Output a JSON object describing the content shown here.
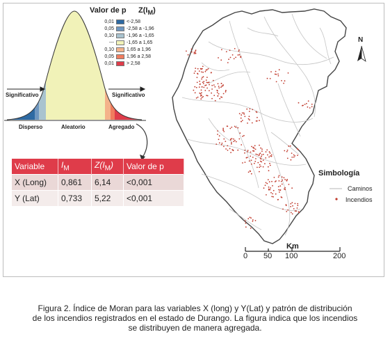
{
  "legend": {
    "header_p": "Valor de p",
    "header_z": "Z(I",
    "header_z_sub": "M",
    "header_z_close": ")",
    "rows": [
      {
        "p": "0,01",
        "z": "<-2,58",
        "color": "#2e6aa3"
      },
      {
        "p": "0,05",
        "z": "-2,58 a -1,96",
        "color": "#6f97c0"
      },
      {
        "p": "0,10",
        "z": "-1,96 a -1,65",
        "color": "#a9c3cf"
      },
      {
        "p": "---",
        "z": "-1,65 a 1,65",
        "color": "#f1f2b8"
      },
      {
        "p": "0,10",
        "z": "1,65 a 1,96",
        "color": "#f4b28a"
      },
      {
        "p": "0,05",
        "z": "1,96 a 2,58",
        "color": "#f07c5e"
      },
      {
        "p": "0,01",
        "z": "> 2,58",
        "color": "#df3c4a"
      }
    ]
  },
  "curve_labels": {
    "significant_left": "Significativo",
    "significant_right": "Significativo",
    "dispersed": "Disperso",
    "random": "Aleatorio",
    "aggregated": "Agregado"
  },
  "table": {
    "headers": [
      "Variable",
      "I",
      "Z(I",
      "Valor de p"
    ],
    "header_sub": "M",
    "rows": [
      {
        "variable": "X (Long)",
        "im": "0,861",
        "z": "6,14",
        "p": "<0,001"
      },
      {
        "variable": "Y (Lat)",
        "im": "0,733",
        "z": "5,22",
        "p": "<0,001"
      }
    ]
  },
  "map_legend": {
    "title": "Simbología",
    "roads": "Caminos",
    "fires": "Incendios",
    "road_color": "#c4c4c4",
    "fire_color": "#c0392b"
  },
  "north_label": "N",
  "scale": {
    "unit": "Km",
    "ticks": [
      "0",
      "50",
      "100",
      "200"
    ]
  },
  "caption": [
    "Figura 2. Índice de Moran para las variables X (long) y Y(Lat) y patrón de distribución",
    "de los incendios registrados en el estado de Durango. La figura indica que los incendios",
    "se distribuyen de manera agregada."
  ]
}
